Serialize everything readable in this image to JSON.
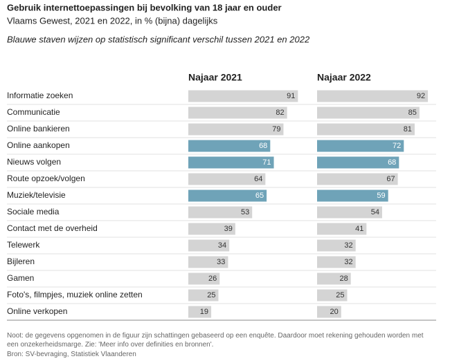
{
  "chart_data": {
    "type": "bar",
    "title": "Gebruik internettoepassingen bij bevolking van 18 jaar en ouder",
    "subtitle": "Vlaams Gewest, 2021 en 2022, in % (bijna) dagelijks",
    "annotation": "Blauwe staven wijzen op statistisch significant verschil tussen 2021 en 2022",
    "categories": [
      "Informatie zoeken",
      "Communicatie",
      "Online bankieren",
      "Online aankopen",
      "Nieuws volgen",
      "Route opzoek/volgen",
      "Muziek/televisie",
      "Sociale media",
      "Contact met de overheid",
      "Telewerk",
      "Bijleren",
      "Gamen",
      "Foto's, filmpjes, muziek online zetten",
      "Online verkopen"
    ],
    "series": [
      {
        "name": "Najaar 2021",
        "values": [
          91,
          82,
          79,
          68,
          71,
          64,
          65,
          53,
          39,
          34,
          33,
          26,
          25,
          19
        ],
        "colors": [
          "#d4d4d4",
          "#d4d4d4",
          "#d4d4d4",
          "#6fa3b8",
          "#6fa3b8",
          "#d4d4d4",
          "#6fa3b8",
          "#d4d4d4",
          "#d4d4d4",
          "#d4d4d4",
          "#d4d4d4",
          "#d4d4d4",
          "#d4d4d4",
          "#d4d4d4"
        ]
      },
      {
        "name": "Najaar 2022",
        "values": [
          92,
          85,
          81,
          72,
          68,
          67,
          59,
          54,
          41,
          32,
          32,
          28,
          25,
          20
        ],
        "colors": [
          "#d4d4d4",
          "#d4d4d4",
          "#d4d4d4",
          "#6fa3b8",
          "#6fa3b8",
          "#d4d4d4",
          "#6fa3b8",
          "#d4d4d4",
          "#d4d4d4",
          "#d4d4d4",
          "#d4d4d4",
          "#d4d4d4",
          "#d4d4d4",
          "#d4d4d4"
        ]
      }
    ],
    "note": "Noot: de gegevens opgenomen in de figuur zijn schattingen gebaseerd op een enquête. Daardoor moet rekening gehouden worden met een onzekerheidsmarge. Zie: 'Meer info over definities en bronnen'.",
    "source": "Bron: SV-bevraging, Statistiek Vlaanderen"
  }
}
